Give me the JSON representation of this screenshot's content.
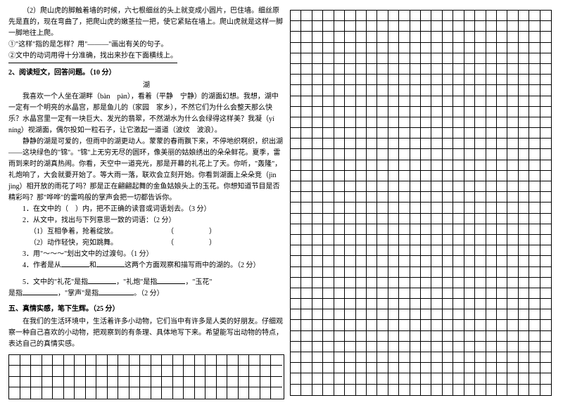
{
  "left": {
    "p0": "（2）爬山虎的脚触着墙的时候，六七根细丝的头上就变成小圆片，巴住墙。细丝原先是直的，现在弯曲了，把爬山虎的嫩茎拉一把，使它紧贴在墙上。爬山虎就是这样一脚一脚地往上爬。",
    "q1": "①\"这样\"指的是怎样？用\"———\"画出有关的句子。",
    "q2": "②文中的动词用得十分准确，找出来抄在下面横线上。",
    "sec2_title": "2、阅读短文，回答问题。（10 分）",
    "poem_title": "湖",
    "p1": "我喜欢一个人坐在湖畔（bàn　pàn），看着（平静　宁静）的湖面幻想。我想，湖中一定有一个明亮的水晶宫，那是鱼儿的（家园　家乡），不然它们为什么会整天那么快乐？水晶宫里一定有一块巨大、发光的翡翠，不然湖水为什么会绿得这样美？我凝（yí　níng）视湖面，偶尔投如一粒石子，让它激起一道道（波纹　波浪）。",
    "p2": "静静的湖是可爱的，但雨中的湖更动人。蒙蒙的春雨飘下来，不停地织啊织，织出湖——这块绿色的\"锦\"。\"锦\"上无穷无尽的圆环，像美丽的姑娘绣出的朵朵鲜花。夏季，雷雨到来时的湖真热闹。你看，天空中一道亮光，那是开幕的礼花上了天。你听，\"轰隆\"，礼炮响了，大会就要开始了。等大雨一落，联欢会立刻开始。你看到湖面上朵朵竞（jìn　jìng）相开放的雨花了吗？那是正在翩翩起舞的金鱼姑娘头上的玉花。你想知道节目是否精彩吗？那\"哗哗\"的雷鸣般的掌声会把一切都告诉你。",
    "i1": "1．在文中的（　）内，把不正确的读音或词语划去。（3 分）",
    "i2": "2．从文中，找出与下列意思一致的词语：（2 分）",
    "i2a": "（1）互相争着，抢着绽放。　　　　　　　　（　　　　　）",
    "i2b": "（2）动作轻快，宛如跳舞。　　　　　　　　（　　　　　）",
    "i3": "3．用\"～～～\"划出文中的过渡句。（1 分）",
    "i4a": "4．作者是从",
    "i4b": "和",
    "i4c": "这两个方面观察和描写雨中的湖的。（2 分）",
    "i5a": "5．文中的\"礼花\"是指",
    "i5b": "，\"礼炮\"是指",
    "i5c": "，\"玉花\"",
    "i5d": "是指",
    "i5e": "，\"掌声\"是指",
    "i5f": "。（2 分）",
    "sec5_title": "五、真情实感，笔下生辉。（25 分）",
    "p5": "在我们的生活环境中，生活着许多小动物，它们当中有许多是人类的好朋友。仔细观察一种自己喜欢的小动物，把观察到的有条理、具体地写下来。希望能写出动物的特点，表达自己的真情实感。"
  }
}
